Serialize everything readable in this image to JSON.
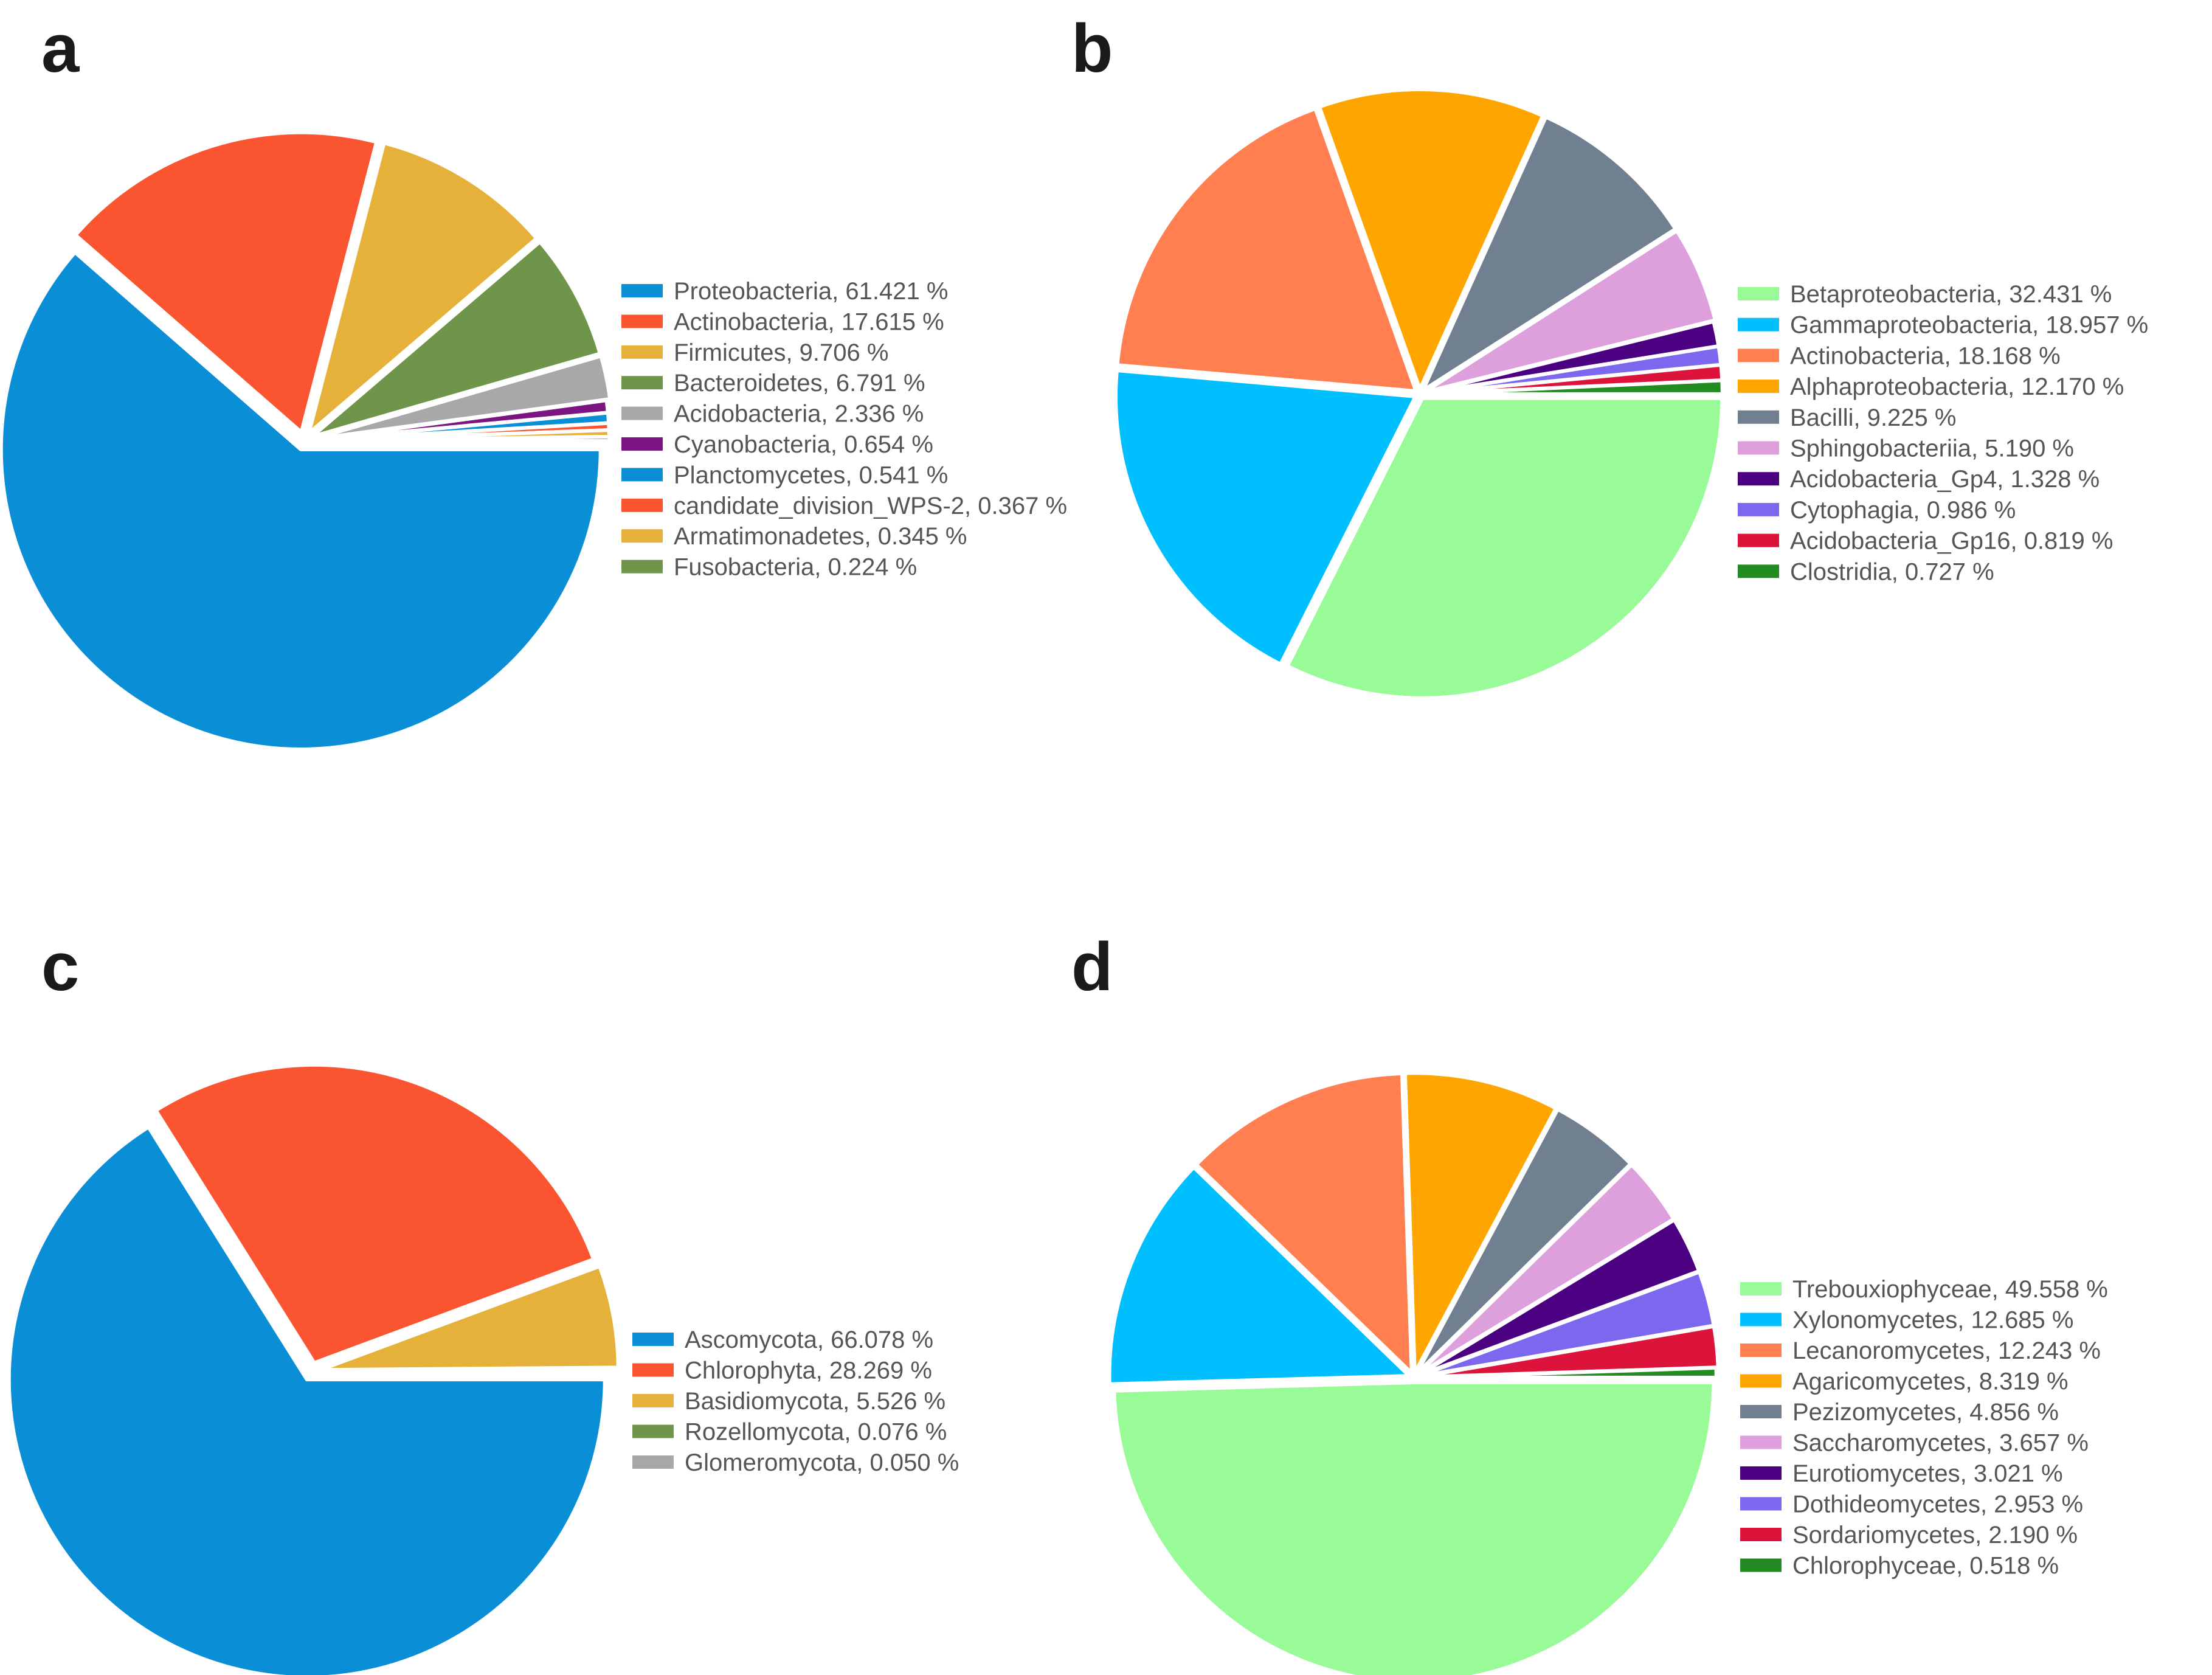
{
  "chart_data": [
    {
      "panel": "a",
      "type": "pie",
      "title": "",
      "legend_position": "right",
      "series": [
        {
          "label": "Proteobacteria",
          "value": 61.421,
          "color": "#0a8ed6"
        },
        {
          "label": "Actinobacteria",
          "value": 17.615,
          "color": "#fb5431"
        },
        {
          "label": "Firmicutes",
          "value": 9.706,
          "color": "#e5b13a"
        },
        {
          "label": "Bacteroidetes",
          "value": 6.791,
          "color": "#6e954a"
        },
        {
          "label": "Acidobacteria",
          "value": 2.336,
          "color": "#a8a8a8"
        },
        {
          "label": "Cyanobacteria",
          "value": 0.654,
          "color": "#7a1581"
        },
        {
          "label": "Planctomycetes",
          "value": 0.541,
          "color": "#0a8ed6"
        },
        {
          "label": "candidate_division_WPS-2",
          "value": 0.367,
          "color": "#fb5431"
        },
        {
          "label": "Armatimonadetes",
          "value": 0.345,
          "color": "#e5b13a"
        },
        {
          "label": "Fusobacteria",
          "value": 0.224,
          "color": "#6e954a"
        }
      ]
    },
    {
      "panel": "b",
      "type": "pie",
      "title": "",
      "legend_position": "right",
      "series": [
        {
          "label": "Betaproteobacteria",
          "value": 32.431,
          "color": "#98fb98"
        },
        {
          "label": "Gammaproteobacteria",
          "value": 18.957,
          "color": "#00bfff"
        },
        {
          "label": "Actinobacteria",
          "value": 18.168,
          "color": "#ff7f50"
        },
        {
          "label": "Alphaproteobacteria",
          "value": 12.17,
          "color": "#ffa500"
        },
        {
          "label": "Bacilli",
          "value": 9.225,
          "color": "#708090"
        },
        {
          "label": "Sphingobacteriia",
          "value": 5.19,
          "color": "#dda0dd"
        },
        {
          "label": "Acidobacteria_Gp4",
          "value": 1.328,
          "color": "#4b0082"
        },
        {
          "label": "Cytophagia",
          "value": 0.986,
          "color": "#7b68ee"
        },
        {
          "label": "Acidobacteria_Gp16",
          "value": 0.819,
          "color": "#dc143c"
        },
        {
          "label": "Clostridia",
          "value": 0.727,
          "color": "#228b22"
        }
      ]
    },
    {
      "panel": "c",
      "type": "pie",
      "title": "",
      "legend_position": "right",
      "series": [
        {
          "label": "Ascomycota",
          "value": 66.078,
          "color": "#0a8ed6"
        },
        {
          "label": "Chlorophyta",
          "value": 28.269,
          "color": "#fb5431"
        },
        {
          "label": "Basidiomycota",
          "value": 5.526,
          "color": "#e5b13a"
        },
        {
          "label": "Rozellomycota",
          "value": 0.076,
          "color": "#6e954a"
        },
        {
          "label": "Glomeromycota",
          "value": 0.05,
          "color": "#a8a8a8"
        }
      ]
    },
    {
      "panel": "d",
      "type": "pie",
      "title": "",
      "legend_position": "right",
      "series": [
        {
          "label": "Trebouxiophyceae",
          "value": 49.558,
          "color": "#98fb98"
        },
        {
          "label": "Xylonomycetes",
          "value": 12.685,
          "color": "#00bfff"
        },
        {
          "label": "Lecanoromycetes",
          "value": 12.243,
          "color": "#ff7f50"
        },
        {
          "label": "Agaricomycetes",
          "value": 8.319,
          "color": "#ffa500"
        },
        {
          "label": "Pezizomycetes",
          "value": 4.856,
          "color": "#708090"
        },
        {
          "label": "Saccharomycetes",
          "value": 3.657,
          "color": "#dda0dd"
        },
        {
          "label": "Eurotiomycetes",
          "value": 3.021,
          "color": "#4b0082"
        },
        {
          "label": "Dothideomycetes",
          "value": 2.953,
          "color": "#7b68ee"
        },
        {
          "label": "Sordariomycetes",
          "value": 2.19,
          "color": "#dc143c"
        },
        {
          "label": "Chlorophyceae",
          "value": 0.518,
          "color": "#228b22"
        }
      ]
    }
  ]
}
